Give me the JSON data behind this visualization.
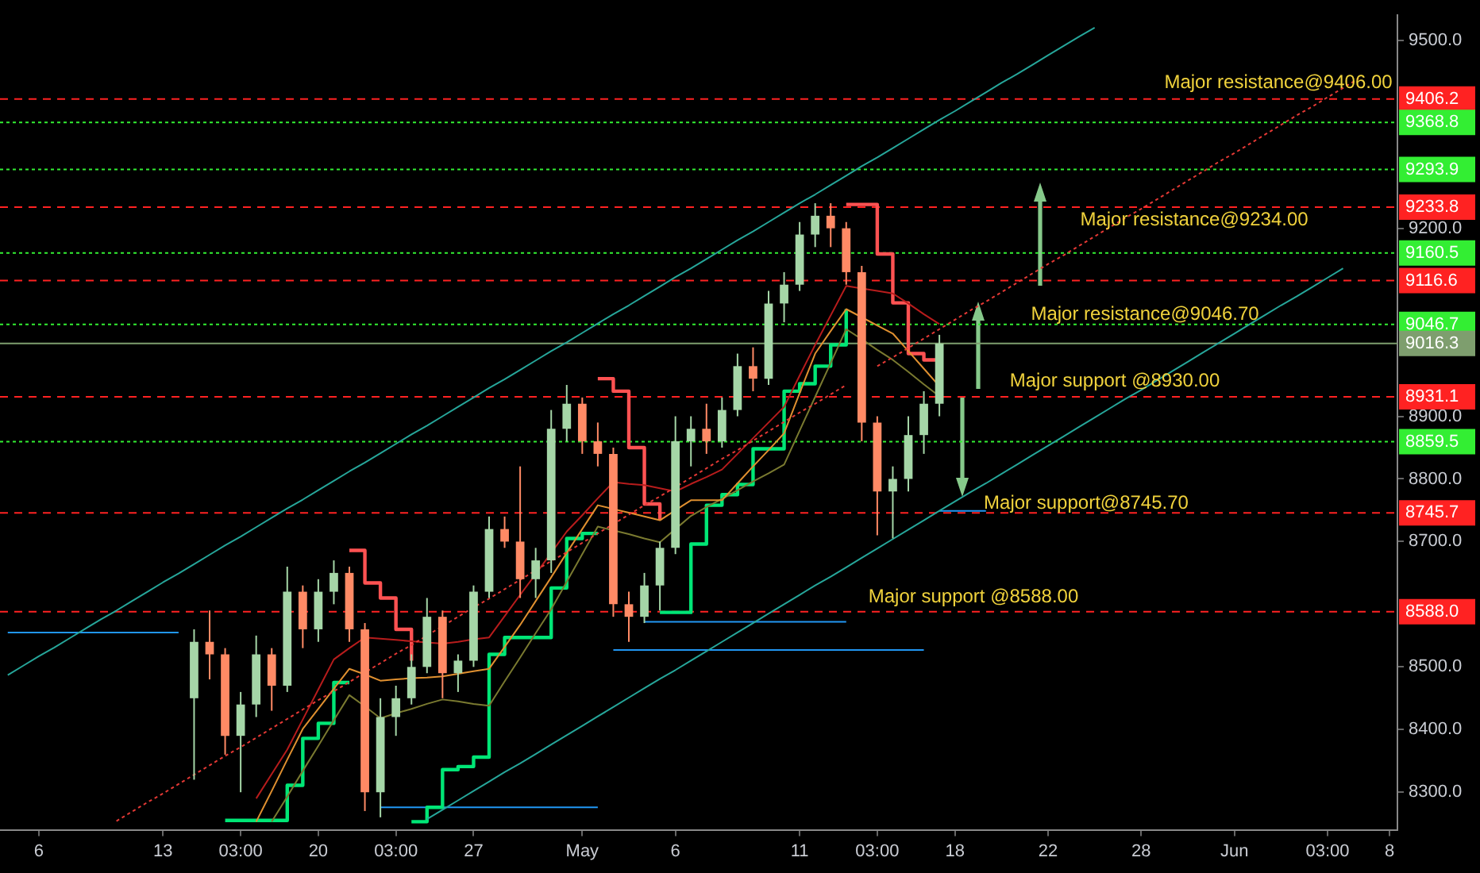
{
  "chart_data": {
    "type": "candlestick",
    "categories": [
      null,
      null,
      "6",
      null,
      null,
      null,
      null,
      null,
      null,
      null,
      "13",
      null,
      null,
      null,
      null,
      "03:00",
      null,
      null,
      null,
      null,
      "20",
      null,
      null,
      null,
      null,
      "03:00",
      null,
      null,
      null,
      null,
      "27",
      null,
      null,
      null,
      null,
      null,
      null,
      "May",
      null,
      null,
      null,
      null,
      null,
      "6",
      null,
      null,
      null,
      null,
      null,
      null,
      null,
      "11",
      null,
      null,
      null,
      null,
      "03:00",
      null,
      null,
      null,
      null,
      "18",
      null,
      null,
      null,
      null,
      null,
      "22",
      null,
      null,
      null,
      null,
      null,
      "28",
      null,
      null,
      null,
      null,
      null,
      "Jun",
      null,
      null,
      null,
      null,
      null,
      "03:00",
      null,
      null,
      null,
      "8"
    ],
    "ohlc": [
      null,
      null,
      null,
      null,
      null,
      null,
      null,
      null,
      null,
      null,
      null,
      null,
      [
        8450,
        8560,
        8320,
        8540
      ],
      [
        8540,
        8590,
        8480,
        8520
      ],
      [
        8520,
        8530,
        8360,
        8390
      ],
      [
        8390,
        8460,
        8300,
        8440
      ],
      [
        8440,
        8550,
        8420,
        8520
      ],
      [
        8520,
        8530,
        8430,
        8470
      ],
      [
        8470,
        8660,
        8460,
        8620
      ],
      [
        8620,
        8630,
        8530,
        8560
      ],
      [
        8560,
        8640,
        8540,
        8620
      ],
      [
        8620,
        8670,
        8600,
        8650
      ],
      [
        8650,
        8660,
        8540,
        8560
      ],
      [
        8560,
        8570,
        8270,
        8300
      ],
      [
        8300,
        8450,
        8260,
        8420
      ],
      [
        8420,
        8470,
        8390,
        8450
      ],
      [
        8450,
        8520,
        8440,
        8500
      ],
      [
        8500,
        8610,
        8490,
        8580
      ],
      [
        8580,
        8590,
        8450,
        8490
      ],
      [
        8490,
        8520,
        8460,
        8510
      ],
      [
        8510,
        8630,
        8500,
        8620
      ],
      [
        8620,
        8740,
        8610,
        8720
      ],
      [
        8720,
        8740,
        8690,
        8700
      ],
      [
        8700,
        8820,
        8610,
        8640
      ],
      [
        8640,
        8690,
        8610,
        8670
      ],
      [
        8670,
        8910,
        8650,
        8880
      ],
      [
        8880,
        8950,
        8860,
        8920
      ],
      [
        8920,
        8930,
        8840,
        8860
      ],
      [
        8860,
        8890,
        8820,
        8840
      ],
      [
        8840,
        8850,
        8580,
        8600
      ],
      [
        8600,
        8620,
        8540,
        8580
      ],
      [
        8580,
        8650,
        8570,
        8630
      ],
      [
        8630,
        8700,
        8590,
        8690
      ],
      [
        8690,
        8900,
        8680,
        8860
      ],
      [
        8860,
        8900,
        8820,
        8880
      ],
      [
        8880,
        8920,
        8840,
        8860
      ],
      [
        8860,
        8930,
        8850,
        8910
      ],
      [
        8910,
        9000,
        8900,
        8980
      ],
      [
        8980,
        9010,
        8940,
        8960
      ],
      [
        8960,
        9100,
        8950,
        9080
      ],
      [
        9080,
        9130,
        9050,
        9110
      ],
      [
        9110,
        9210,
        9100,
        9190
      ],
      [
        9190,
        9240,
        9170,
        9220
      ],
      [
        9220,
        9240,
        9170,
        9200
      ],
      [
        9200,
        9210,
        9110,
        9130
      ],
      [
        9130,
        9140,
        8860,
        8890
      ],
      [
        8890,
        8900,
        8710,
        8780
      ],
      [
        8780,
        8820,
        8705,
        8800
      ],
      [
        8800,
        8900,
        8780,
        8870
      ],
      [
        8870,
        8940,
        8840,
        8920
      ],
      [
        8920,
        9030,
        8900,
        9016
      ],
      null,
      null,
      null,
      null,
      null,
      null,
      null,
      null,
      null,
      null,
      null,
      null,
      null,
      null,
      null,
      null,
      null,
      null,
      null,
      null,
      null,
      null,
      null,
      null,
      null,
      null,
      null,
      null,
      null
    ],
    "colors": [
      null,
      null,
      null,
      null,
      null,
      null,
      null,
      null,
      null,
      null,
      null,
      null,
      "#a5d6a7",
      "#ff8a65",
      "#ff8a65",
      "#a5d6a7",
      "#a5d6a7",
      "#ff8a65",
      "#a5d6a7",
      "#ff8a65",
      "#a5d6a7",
      "#a5d6a7",
      "#ff8a65",
      "#ff8a65",
      "#a5d6a7",
      "#a5d6a7",
      "#a5d6a7",
      "#a5d6a7",
      "#ff8a65",
      "#a5d6a7",
      "#a5d6a7",
      "#a5d6a7",
      "#ff8a65",
      "#ff8a65",
      "#a5d6a7",
      "#a5d6a7",
      "#a5d6a7",
      "#ff8a65",
      "#ff8a65",
      "#ff8a65",
      "#ff8a65",
      "#a5d6a7",
      "#a5d6a7",
      "#a5d6a7",
      "#a5d6a7",
      "#ff8a65",
      "#a5d6a7",
      "#a5d6a7",
      "#ff8a65",
      "#a5d6a7",
      "#a5d6a7",
      "#a5d6a7",
      "#a5d6a7",
      "#ff8a65",
      "#ff8a65",
      "#ff8a65",
      "#ff8a65",
      "#a5d6a7",
      "#a5d6a7",
      "#a5d6a7",
      "#a5d6a7",
      null,
      null,
      null,
      null,
      null,
      null,
      null,
      null,
      null,
      null,
      null,
      null,
      null,
      null,
      null,
      null,
      null,
      null,
      null,
      null,
      null,
      null,
      null,
      null,
      null,
      null,
      null,
      null,
      null
    ],
    "series": [
      {
        "type": "line",
        "color": "#26a69a",
        "values": [
          8487,
          8502,
          8517,
          8531,
          8546,
          8561,
          8576,
          8590,
          8605,
          8620,
          8635,
          8649,
          8664,
          8679,
          8694,
          8708,
          8723,
          8738,
          8753,
          8767,
          8782,
          8797,
          8812,
          8826,
          8841,
          8856,
          8871,
          8885,
          8900,
          8915,
          8930,
          8945,
          8959,
          8974,
          8989,
          9004,
          9018,
          9033,
          9048,
          9063,
          9077,
          9092,
          9107,
          9122,
          9136,
          9151,
          9166,
          9181,
          9195,
          9210,
          9225,
          9240,
          9254,
          9269,
          9284,
          9299,
          9313,
          9328,
          9343,
          9358,
          9373,
          9387,
          9402,
          9417,
          9432,
          9446,
          9461,
          9476,
          9491,
          9506,
          9520,
          null,
          null,
          null,
          null,
          null,
          null,
          null,
          null,
          null,
          null,
          null,
          null,
          null,
          null,
          null,
          null,
          null,
          null,
          null
        ]
      },
      {
        "type": "line",
        "color": "#26a69a",
        "values": [
          null,
          null,
          null,
          null,
          null,
          null,
          null,
          null,
          null,
          null,
          null,
          null,
          null,
          null,
          null,
          null,
          null,
          null,
          null,
          null,
          null,
          null,
          null,
          null,
          null,
          null,
          null,
          8257,
          8272,
          8287,
          8302,
          8317,
          8332,
          8346,
          8361,
          8376,
          8391,
          8406,
          8421,
          8436,
          8451,
          8466,
          8481,
          8495,
          8510,
          8525,
          8540,
          8555,
          8570,
          8585,
          8600,
          8615,
          8630,
          8644,
          8659,
          8674,
          8689,
          8704,
          8719,
          8734,
          8749,
          8764,
          8779,
          8793,
          8808,
          8823,
          8838,
          8853,
          8868,
          8883,
          8898,
          8913,
          8928,
          8942,
          8957,
          8972,
          8987,
          9002,
          9017,
          9032,
          9047,
          9062,
          9077,
          9091,
          9106,
          9121,
          9136,
          null,
          null,
          null
        ]
      },
      {
        "type": "line",
        "color": "#e53935",
        "line_style": "dotted",
        "values": [
          null,
          null,
          null,
          null,
          null,
          null,
          null,
          8254,
          8269,
          8284,
          8298,
          8313,
          8328,
          8343,
          8358,
          8372,
          8387,
          8402,
          8417,
          8432,
          8447,
          8461,
          8476,
          8491,
          8506,
          8521,
          8535,
          8550,
          8565,
          8580,
          8595,
          8609,
          8624,
          8639,
          8654,
          8669,
          8683,
          8698,
          8713,
          8728,
          8743,
          8758,
          8772,
          8787,
          8802,
          8817,
          8832,
          8846,
          8861,
          8876,
          8891,
          8906,
          8920,
          8935,
          8950,
          null,
          8980,
          8994,
          9009,
          9024,
          9039,
          9054,
          9069,
          9083,
          9098,
          9113,
          9128,
          9143,
          9157,
          9172,
          9187,
          9202,
          9217,
          9231,
          9246,
          9261,
          9276,
          9291,
          9306,
          9320,
          9335,
          9350,
          9365,
          9380,
          9394,
          9409,
          9424,
          9439,
          null,
          null
        ]
      },
      {
        "type": "line",
        "color": "#b71c1c",
        "values": [
          null,
          null,
          null,
          null,
          null,
          null,
          null,
          null,
          null,
          null,
          null,
          null,
          null,
          null,
          null,
          null,
          8290,
          8329,
          8368,
          8416,
          8464,
          8512,
          8530,
          8547,
          8545,
          8543,
          8541,
          8539,
          8537,
          8540,
          8544,
          8547,
          8581,
          8615,
          8648,
          8682,
          8716,
          8742,
          8769,
          8795,
          8792,
          8790,
          8785,
          8780,
          8792,
          8803,
          8815,
          8840,
          8865,
          8890,
          8915,
          8965,
          9014,
          9061,
          9108,
          9104,
          9100,
          9096,
          9080,
          9063,
          9047,
          null,
          null,
          null,
          null,
          null,
          null,
          null,
          null,
          null,
          null,
          null,
          null,
          null,
          null,
          null,
          null,
          null,
          null,
          null,
          null,
          null,
          null,
          null,
          null,
          null,
          null,
          null,
          null,
          null
        ]
      },
      {
        "type": "line",
        "color": "#e09030",
        "values": [
          null,
          null,
          null,
          null,
          null,
          null,
          null,
          null,
          null,
          null,
          null,
          null,
          null,
          null,
          null,
          null,
          8253,
          8302,
          8352,
          8401,
          8433,
          8465,
          8497,
          8488,
          8478,
          8480,
          8482,
          8483,
          8485,
          8489,
          8493,
          8497,
          8532,
          8567,
          8605,
          8643,
          8682,
          8720,
          8758,
          8752,
          8746,
          8740,
          8734,
          8750,
          8766,
          8766,
          8766,
          8793,
          8820,
          8846,
          8873,
          8937,
          9000,
          9036,
          9071,
          9058,
          9045,
          9032,
          9004,
          8976,
          8948,
          null,
          null,
          null,
          null,
          null,
          null,
          null,
          null,
          null,
          null,
          null,
          null,
          null,
          null,
          null,
          null,
          null,
          null,
          null,
          null,
          null,
          null,
          null,
          null,
          null,
          null,
          null,
          null,
          null
        ]
      },
      {
        "type": "line",
        "color": "#7a7a30",
        "values": [
          null,
          null,
          null,
          null,
          null,
          null,
          null,
          null,
          null,
          null,
          null,
          null,
          null,
          null,
          null,
          null,
          null,
          8253,
          8293,
          8334,
          8374,
          8415,
          8455,
          8437,
          8418,
          8426,
          8433,
          8441,
          8448,
          8445,
          8441,
          8438,
          8477,
          8515,
          8554,
          8592,
          8636,
          8680,
          8724,
          8718,
          8712,
          8705,
          8699,
          8720,
          8741,
          8755,
          8768,
          8782,
          8796,
          8809,
          8823,
          8877,
          8931,
          8985,
          9039,
          9023,
          9006,
          8990,
          8971,
          8951,
          8932,
          null,
          null,
          null,
          null,
          null,
          null,
          null,
          null,
          null,
          null,
          null,
          null,
          null,
          null,
          null,
          null,
          null,
          null,
          null,
          null,
          null,
          null,
          null,
          null,
          null,
          null,
          null,
          null,
          null
        ]
      },
      {
        "type": "step",
        "color": "#00e676",
        "values": [
          null,
          null,
          null,
          null,
          null,
          null,
          null,
          null,
          null,
          null,
          null,
          null,
          null,
          null,
          8255,
          8255,
          8255,
          8255,
          8311,
          8386,
          8410,
          8475,
          8475,
          null,
          null,
          null,
          8253,
          8276,
          8336,
          8341,
          8356,
          8520,
          8547,
          8547,
          8547,
          8626,
          8705,
          8713,
          8713,
          null,
          null,
          null,
          8587,
          8587,
          8696,
          8758,
          8775,
          8791,
          8848,
          8848,
          8940,
          8952,
          8980,
          9014,
          9071,
          null,
          null,
          null,
          null,
          null,
          null,
          null,
          null,
          null,
          null,
          null,
          null,
          null,
          null,
          null,
          null,
          null,
          null,
          null,
          null,
          null,
          null,
          null,
          null,
          null,
          null,
          null,
          null,
          null,
          null,
          null,
          null,
          null,
          null,
          null
        ]
      },
      {
        "type": "step",
        "color": "#ff5252",
        "values": [
          null,
          null,
          null,
          null,
          null,
          null,
          null,
          null,
          null,
          null,
          null,
          null,
          null,
          null,
          null,
          null,
          null,
          null,
          null,
          null,
          null,
          null,
          8686,
          8634,
          8610,
          8560,
          8510,
          null,
          null,
          null,
          null,
          null,
          null,
          null,
          null,
          null,
          null,
          null,
          8960,
          8940,
          8850,
          8760,
          8734,
          null,
          null,
          null,
          null,
          null,
          null,
          null,
          null,
          null,
          null,
          null,
          9238,
          9238,
          9159,
          9081,
          9000,
          8990,
          8965,
          null,
          null,
          null,
          null,
          null,
          null,
          null,
          null,
          null,
          null,
          null,
          null,
          null,
          null,
          null,
          null,
          null,
          null,
          null,
          null,
          null,
          null,
          null,
          null,
          null,
          null,
          null,
          null,
          null
        ]
      },
      {
        "type": "line",
        "color": "#2196f3",
        "values": [
          8555,
          8555,
          8555,
          8555,
          8555,
          8555,
          8555,
          8555,
          8555,
          8555,
          8555,
          8555,
          null,
          null,
          null,
          null,
          null,
          null,
          null,
          null,
          null,
          null,
          null,
          null,
          null,
          null,
          null,
          null,
          null,
          null,
          null,
          null,
          null,
          null,
          null,
          null,
          null,
          null,
          null,
          null,
          null,
          null,
          null,
          null,
          null,
          null,
          null,
          null,
          null,
          null,
          null,
          null,
          null,
          null,
          null,
          null,
          null,
          null,
          null,
          null,
          null,
          null,
          null,
          null,
          null,
          null,
          null,
          null,
          null,
          null,
          null,
          null,
          null,
          null,
          null,
          null,
          null,
          null,
          null,
          null,
          null,
          null,
          null,
          null,
          null,
          null,
          null,
          null,
          null,
          null
        ]
      },
      {
        "type": "line",
        "color": "#2196f3",
        "values": [
          null,
          null,
          null,
          null,
          null,
          null,
          null,
          null,
          null,
          null,
          null,
          null,
          null,
          null,
          null,
          null,
          null,
          null,
          null,
          null,
          null,
          null,
          null,
          null,
          8276,
          8276,
          8276,
          8276,
          8276,
          8276,
          8276,
          8276,
          8276,
          8276,
          8276,
          8276,
          8276,
          8276,
          8276,
          null,
          null,
          null,
          null,
          null,
          null,
          null,
          null,
          null,
          null,
          null,
          null,
          null,
          null,
          null,
          null,
          null,
          null,
          null,
          null,
          null,
          null,
          null,
          null,
          null,
          null,
          null,
          null,
          null,
          null,
          null,
          null,
          null,
          null,
          null,
          null,
          null,
          null,
          null,
          null,
          null,
          null,
          null,
          null,
          null,
          null,
          null,
          null,
          null,
          null,
          null
        ]
      },
      {
        "type": "line",
        "color": "#2196f3",
        "values": [
          null,
          null,
          null,
          null,
          null,
          null,
          null,
          null,
          null,
          null,
          null,
          null,
          null,
          null,
          null,
          null,
          null,
          null,
          null,
          null,
          null,
          null,
          null,
          null,
          null,
          null,
          null,
          null,
          null,
          null,
          null,
          null,
          null,
          null,
          null,
          null,
          null,
          null,
          null,
          8527,
          8527,
          8527,
          8527,
          8527,
          8527,
          8527,
          8527,
          8527,
          8527,
          8527,
          8527,
          8527,
          8527,
          8527,
          8527,
          8527,
          8527,
          8527,
          8527,
          8527,
          null,
          null,
          null,
          null,
          null,
          null,
          null,
          null,
          null,
          null,
          null,
          null,
          null,
          null,
          null,
          null,
          null,
          null,
          null,
          null,
          null,
          null,
          null,
          null,
          null,
          null,
          null,
          null,
          null,
          null
        ]
      },
      {
        "type": "line",
        "color": "#2196f3",
        "values": [
          null,
          null,
          null,
          null,
          null,
          null,
          null,
          null,
          null,
          null,
          null,
          null,
          null,
          null,
          null,
          null,
          null,
          null,
          null,
          null,
          null,
          null,
          null,
          null,
          null,
          null,
          null,
          null,
          null,
          null,
          null,
          null,
          null,
          null,
          null,
          null,
          null,
          null,
          null,
          null,
          null,
          8572,
          8572,
          8572,
          8572,
          8572,
          8572,
          8572,
          8572,
          8572,
          8572,
          8572,
          8572,
          8572,
          8572,
          null,
          null,
          null,
          null,
          null,
          null,
          null,
          null,
          null,
          null,
          null,
          null,
          null,
          null,
          null,
          null,
          null,
          null,
          null,
          null,
          null,
          null,
          null,
          null,
          null,
          null,
          null,
          null,
          null,
          null,
          null,
          null,
          null,
          null,
          null
        ]
      },
      {
        "type": "line",
        "color": "#2196f3",
        "values": [
          null,
          null,
          null,
          null,
          null,
          null,
          null,
          null,
          null,
          null,
          null,
          null,
          null,
          null,
          null,
          null,
          null,
          null,
          null,
          null,
          null,
          null,
          null,
          null,
          null,
          null,
          null,
          null,
          null,
          null,
          null,
          null,
          null,
          null,
          null,
          null,
          null,
          null,
          null,
          null,
          null,
          null,
          null,
          null,
          null,
          null,
          null,
          null,
          null,
          null,
          null,
          null,
          null,
          null,
          null,
          null,
          null,
          null,
          null,
          null,
          8749,
          8749,
          8749,
          8749,
          null,
          null,
          null,
          null,
          null,
          null,
          null,
          null,
          null,
          null,
          null,
          null,
          null,
          null,
          null,
          null,
          null,
          null,
          null,
          null,
          null,
          null,
          null,
          null,
          null,
          null
        ]
      }
    ],
    "ref_lines": [
      {
        "axis": "y",
        "value": 9406.2,
        "label": "9406.2",
        "color": "#ff2222",
        "line_style": "dashed"
      },
      {
        "axis": "y",
        "value": 9368.8,
        "label": "9368.8",
        "color": "#33ee33",
        "line_style": "dotted"
      },
      {
        "axis": "y",
        "value": 9293.9,
        "label": "9293.9",
        "color": "#33ee33",
        "line_style": "dotted"
      },
      {
        "axis": "y",
        "value": 9233.8,
        "label": "9233.8",
        "color": "#ff2222",
        "line_style": "dashed"
      },
      {
        "axis": "y",
        "value": 9160.5,
        "label": "9160.5",
        "color": "#33ee33",
        "line_style": "dotted"
      },
      {
        "axis": "y",
        "value": 9116.6,
        "label": "9116.6",
        "color": "#ff2222",
        "line_style": "dashed"
      },
      {
        "axis": "y",
        "value": 9046.7,
        "label": "9046.7",
        "color": "#33ee33",
        "line_style": "dotted"
      },
      {
        "axis": "y",
        "value": 9016.3,
        "label": "9016.3",
        "color": "#7e9e6e",
        "line_style": "solid"
      },
      {
        "axis": "y",
        "value": 8931.1,
        "label": "8931.1",
        "color": "#ff2222",
        "line_style": "dashed"
      },
      {
        "axis": "y",
        "value": 8859.5,
        "label": "8859.5",
        "color": "#33ee33",
        "line_style": "dotted"
      },
      {
        "axis": "y",
        "value": 8745.7,
        "label": "8745.7",
        "color": "#ff2222",
        "line_style": "dashed"
      },
      {
        "axis": "y",
        "value": 8588.0,
        "label": "8588.0",
        "color": "#ff2222",
        "line_style": "dashed"
      }
    ],
    "annotations": [
      {
        "text": "Major resistance@9406.00",
        "y": 9406.2
      },
      {
        "text": "Major resistance@9234.00",
        "y": 9233.8
      },
      {
        "text": "Major resistance@9046.70",
        "y": 9046.7
      },
      {
        "text": "Major support @8930.00",
        "y": 8931.1
      },
      {
        "text": "Major support@8745.70",
        "y": 8745.7
      },
      {
        "text": "Major support @8588.00",
        "y": 8588.0
      }
    ],
    "ylim": [
      8240,
      9540
    ],
    "yticks": [
      {
        "value": 8300,
        "label": "8300.0"
      },
      {
        "value": 8400,
        "label": "8400.0"
      },
      {
        "value": 8500,
        "label": "8500.0"
      },
      {
        "value": 8700,
        "label": "8700.0"
      },
      {
        "value": 8800,
        "label": "8800.0"
      },
      {
        "value": 8900,
        "label": "8900.0"
      },
      {
        "value": 9200,
        "label": "9200.0"
      },
      {
        "value": 9500,
        "label": "9500.0"
      }
    ]
  }
}
